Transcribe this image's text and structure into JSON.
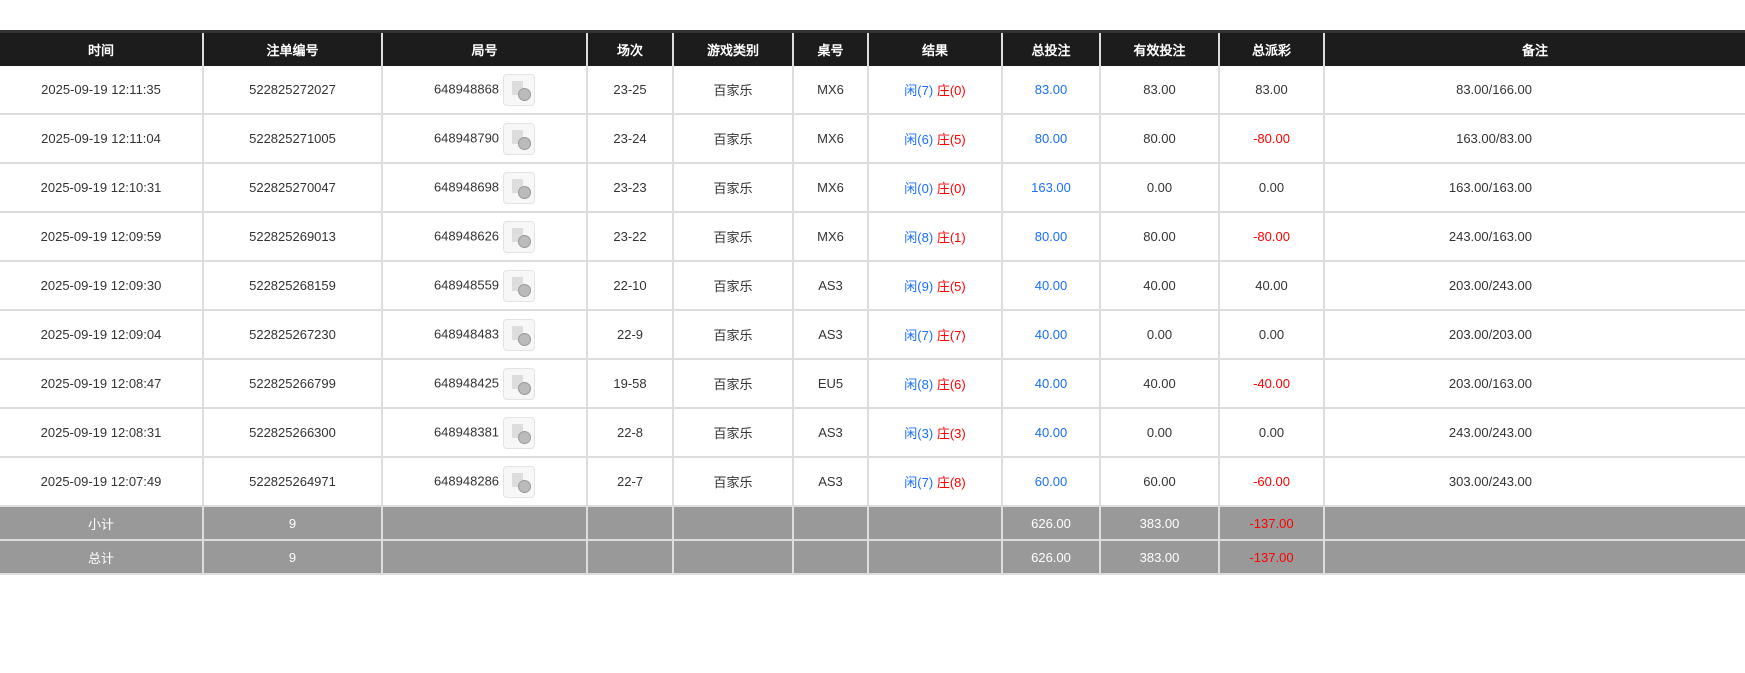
{
  "headers": [
    "时间",
    "注单编号",
    "局号",
    "场次",
    "游戏类别",
    "桌号",
    "结果",
    "总投注",
    "有效投注",
    "总派彩",
    "备注"
  ],
  "rows": [
    {
      "time": "2025-09-19 12:11:35",
      "bet_id": "522825272027",
      "round": "648948868",
      "shoe": "23-25",
      "game": "百家乐",
      "table": "MX6",
      "player": "闲(7)",
      "banker": "庄(0)",
      "total_bet": "83.00",
      "valid_bet": "83.00",
      "payout": "83.00",
      "payout_negative": false,
      "remark": "83.00/166.00"
    },
    {
      "time": "2025-09-19 12:11:04",
      "bet_id": "522825271005",
      "round": "648948790",
      "shoe": "23-24",
      "game": "百家乐",
      "table": "MX6",
      "player": "闲(6)",
      "banker": "庄(5)",
      "total_bet": "80.00",
      "valid_bet": "80.00",
      "payout": "-80.00",
      "payout_negative": true,
      "remark": "163.00/83.00"
    },
    {
      "time": "2025-09-19 12:10:31",
      "bet_id": "522825270047",
      "round": "648948698",
      "shoe": "23-23",
      "game": "百家乐",
      "table": "MX6",
      "player": "闲(0)",
      "banker": "庄(0)",
      "total_bet": "163.00",
      "valid_bet": "0.00",
      "payout": "0.00",
      "payout_negative": false,
      "remark": "163.00/163.00"
    },
    {
      "time": "2025-09-19 12:09:59",
      "bet_id": "522825269013",
      "round": "648948626",
      "shoe": "23-22",
      "game": "百家乐",
      "table": "MX6",
      "player": "闲(8)",
      "banker": "庄(1)",
      "total_bet": "80.00",
      "valid_bet": "80.00",
      "payout": "-80.00",
      "payout_negative": true,
      "remark": "243.00/163.00"
    },
    {
      "time": "2025-09-19 12:09:30",
      "bet_id": "522825268159",
      "round": "648948559",
      "shoe": "22-10",
      "game": "百家乐",
      "table": "AS3",
      "player": "闲(9)",
      "banker": "庄(5)",
      "total_bet": "40.00",
      "valid_bet": "40.00",
      "payout": "40.00",
      "payout_negative": false,
      "remark": "203.00/243.00"
    },
    {
      "time": "2025-09-19 12:09:04",
      "bet_id": "522825267230",
      "round": "648948483",
      "shoe": "22-9",
      "game": "百家乐",
      "table": "AS3",
      "player": "闲(7)",
      "banker": "庄(7)",
      "total_bet": "40.00",
      "valid_bet": "0.00",
      "payout": "0.00",
      "payout_negative": false,
      "remark": "203.00/203.00"
    },
    {
      "time": "2025-09-19 12:08:47",
      "bet_id": "522825266799",
      "round": "648948425",
      "shoe": "19-58",
      "game": "百家乐",
      "table": "EU5",
      "player": "闲(8)",
      "banker": "庄(6)",
      "total_bet": "40.00",
      "valid_bet": "40.00",
      "payout": "-40.00",
      "payout_negative": true,
      "remark": "203.00/163.00"
    },
    {
      "time": "2025-09-19 12:08:31",
      "bet_id": "522825266300",
      "round": "648948381",
      "shoe": "22-8",
      "game": "百家乐",
      "table": "AS3",
      "player": "闲(3)",
      "banker": "庄(3)",
      "total_bet": "40.00",
      "valid_bet": "0.00",
      "payout": "0.00",
      "payout_negative": false,
      "remark": "243.00/243.00"
    },
    {
      "time": "2025-09-19 12:07:49",
      "bet_id": "522825264971",
      "round": "648948286",
      "shoe": "22-7",
      "game": "百家乐",
      "table": "AS3",
      "player": "闲(7)",
      "banker": "庄(8)",
      "total_bet": "60.00",
      "valid_bet": "60.00",
      "payout": "-60.00",
      "payout_negative": true,
      "remark": "303.00/243.00"
    }
  ],
  "summary": [
    {
      "label": "小计",
      "count": "9",
      "total_bet": "626.00",
      "valid_bet": "383.00",
      "payout": "-137.00"
    },
    {
      "label": "总计",
      "count": "9",
      "total_bet": "626.00",
      "valid_bet": "383.00",
      "payout": "-137.00"
    }
  ],
  "colors": {
    "header_bg": "#1c1c1c",
    "player": "#1a6fff",
    "banker": "#ff0000",
    "summary_bg": "#999999"
  },
  "icons": {
    "replay": "video-replay-icon"
  }
}
